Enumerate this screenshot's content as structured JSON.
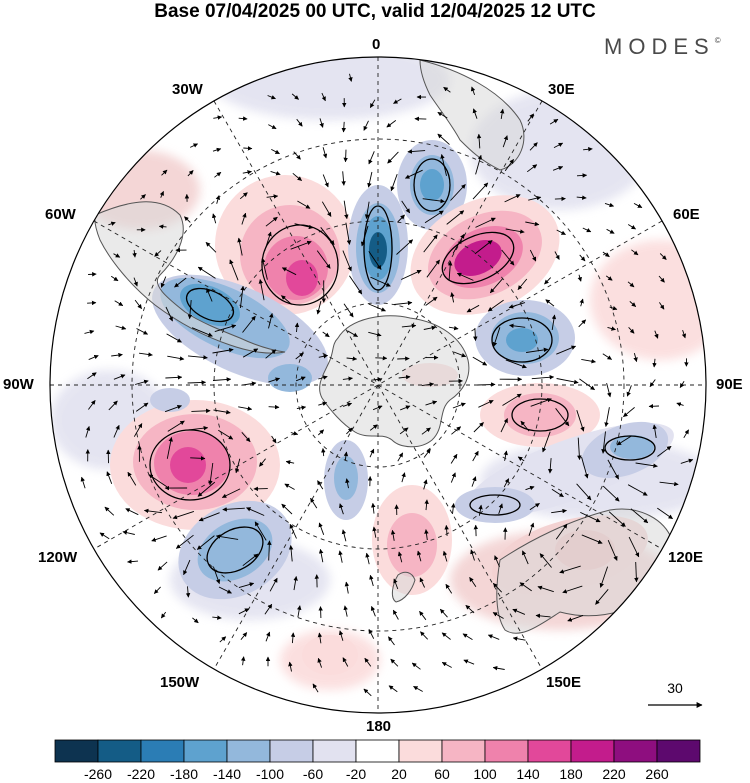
{
  "title": "Base 07/04/2025 00 UTC, valid 12/04/2025 12 UTC",
  "brand": "MODES",
  "brand_mark": "©",
  "longitude_labels": {
    "lon_0": "0",
    "lon_30e": "30E",
    "lon_60e": "60E",
    "lon_90e": "90E",
    "lon_120e": "120E",
    "lon_150e": "150E",
    "lon_180": "180",
    "lon_150w": "150W",
    "lon_120w": "120W",
    "lon_90w": "90W",
    "lon_60w": "60W",
    "lon_30w": "30W"
  },
  "vector_reference": {
    "value": "30"
  },
  "colorbar": {
    "ticks": [
      "-260",
      "-220",
      "-180",
      "-140",
      "-100",
      "-60",
      "-20",
      "20",
      "60",
      "100",
      "140",
      "180",
      "220",
      "260"
    ],
    "colors": [
      "#0d3350",
      "#145c86",
      "#2b7db5",
      "#5ea2cf",
      "#93b8dc",
      "#c6cde6",
      "#e2e2f0",
      "#ffffff",
      "#fbdcdc",
      "#f6b5c4",
      "#ef82ac",
      "#e2489a",
      "#c31c8c",
      "#8e0e7f",
      "#5d096e"
    ]
  }
}
